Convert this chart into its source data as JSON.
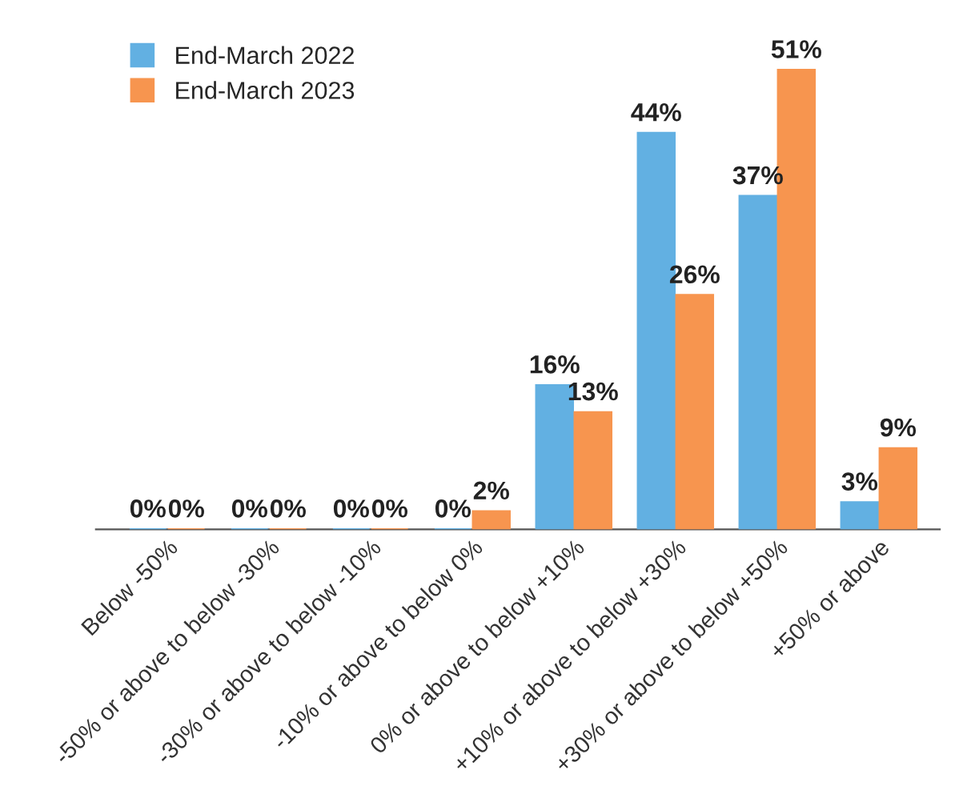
{
  "chart_data": {
    "type": "bar",
    "categories": [
      "Below -50%",
      "-50% or above to below -30%",
      "-30% or above to below -10%",
      "-10% or above to below 0%",
      "0% or above to below +10%",
      "+10% or above to below +30%",
      "+30% or above to below +50%",
      "+50% or above"
    ],
    "series": [
      {
        "name": "End-March 2022",
        "color": "#62b0e2",
        "values": [
          0,
          0,
          0,
          0,
          16,
          44,
          37,
          3
        ],
        "value_labels": [
          "0%",
          "0%",
          "0%",
          "0%",
          "16%",
          "44%",
          "37%",
          "3%"
        ]
      },
      {
        "name": "End-March 2023",
        "color": "#f7954f",
        "values": [
          0,
          0,
          0,
          2,
          13,
          26,
          51,
          9
        ],
        "value_labels": [
          "0%",
          "0%",
          "0%",
          "2%",
          "13%",
          "26%",
          "51%",
          "9%"
        ]
      }
    ],
    "legend": "top left",
    "grid": false
  }
}
